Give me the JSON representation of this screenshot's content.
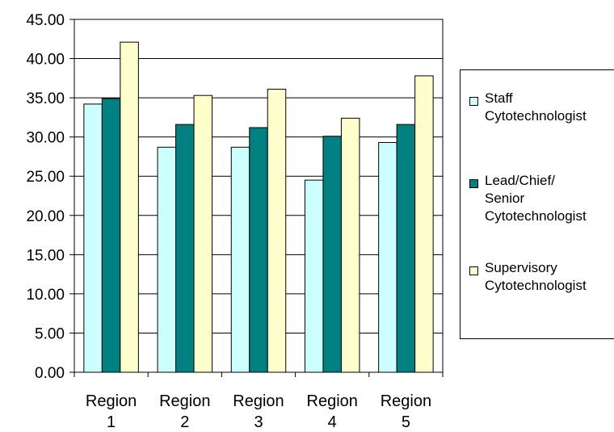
{
  "chart_data": {
    "type": "bar",
    "title": "",
    "xlabel": "",
    "ylabel": "",
    "categories": [
      "Region\n1",
      "Region\n2",
      "Region\n3",
      "Region\n4",
      "Region\n5"
    ],
    "series": [
      {
        "name": "Staff Cytotechnologist",
        "color": "#ccffff",
        "values": [
          34.2,
          28.7,
          28.7,
          24.5,
          29.3
        ]
      },
      {
        "name": "Lead/Chief/ Senior Cytotechnologist",
        "color": "#008080",
        "values": [
          34.9,
          31.6,
          31.2,
          30.1,
          31.6
        ]
      },
      {
        "name": "Supervisory Cytotechnologist",
        "color": "#ffffcc",
        "values": [
          42.1,
          35.3,
          36.1,
          32.4,
          37.8
        ]
      }
    ],
    "ylim": [
      0,
      45
    ],
    "yticks": [
      "0.00",
      "5.00",
      "10.00",
      "15.00",
      "20.00",
      "25.00",
      "30.00",
      "35.00",
      "40.00",
      "45.00"
    ],
    "grid": true,
    "legend": {
      "position": "right",
      "entries": [
        "Staff\nCytotechnologist",
        "Lead/Chief/\nSenior\nCytotechnologist",
        "Supervisory\nCytotechnologist"
      ]
    }
  }
}
